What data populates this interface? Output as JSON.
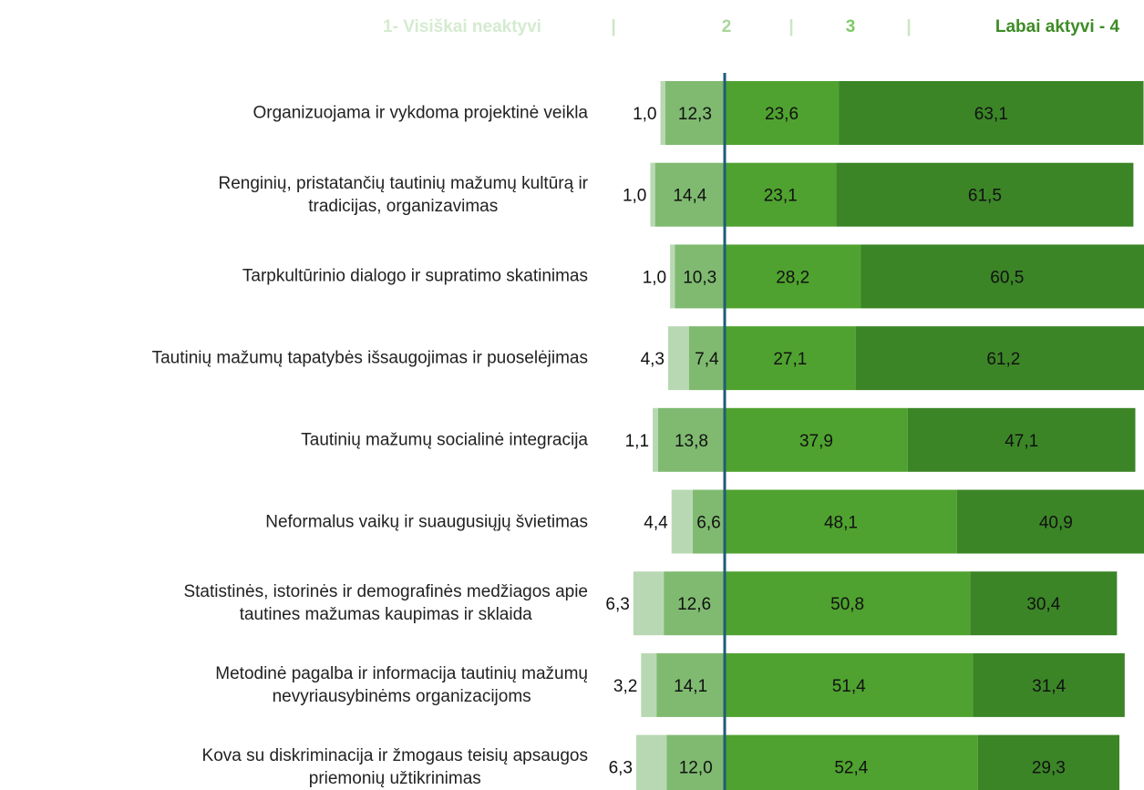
{
  "chart_data": {
    "type": "diverging_bar",
    "legend_separator": "|",
    "categories": [
      "Organizuojama ir vykdoma projektinė veikla",
      "Renginių, pristatančių tautinių mažumų kultūrą ir\ntradicijas, organizavimas",
      "Tarpkultūrinio dialogo ir supratimo skatinimas",
      "Tautinių mažumų tapatybės išsaugojimas ir puoselėjimas",
      "Tautinių mažumų socialinė integracija",
      "Neformalus vaikų ir suaugusiųjų švietimas",
      "Statistinės, istorinės ir demografinės medžiagos apie\ntautines mažumas kaupimas ir sklaida",
      "Metodinė pagalba ir informacija tautinių mažumų\nnevyriausybinėms organizacijoms",
      "Kova su diskriminacija ir žmogaus teisių apsaugos\npriemonių užtikrinimas"
    ],
    "series": [
      {
        "name": "1- Visiškai neaktyvi",
        "color": "#b8d8b3",
        "legend_color": "#d4ebcf",
        "values": [
          1.0,
          1.0,
          1.0,
          4.3,
          1.1,
          4.4,
          6.3,
          3.2,
          6.3
        ],
        "value_labels": [
          "1,0",
          "1,0",
          "1,0",
          "4,3",
          "1,1",
          "4,4",
          "6,3",
          "3,2",
          "6,3"
        ]
      },
      {
        "name": "2",
        "color": "#7fba70",
        "legend_color": "#a9d69c",
        "values": [
          12.3,
          14.4,
          10.3,
          7.4,
          13.8,
          6.6,
          12.6,
          14.1,
          12.0
        ],
        "value_labels": [
          "12,3",
          "14,4",
          "10,3",
          "7,4",
          "13,8",
          "6,6",
          "12,6",
          "14,1",
          "12,0"
        ]
      },
      {
        "name": "3",
        "color": "#4fa22f",
        "legend_color": "#7fc96a",
        "values": [
          23.6,
          23.1,
          28.2,
          27.1,
          37.9,
          48.1,
          50.8,
          51.4,
          52.4
        ],
        "value_labels": [
          "23,6",
          "23,1",
          "28,2",
          "27,1",
          "37,9",
          "48,1",
          "50,8",
          "51,4",
          "52,4"
        ]
      },
      {
        "name": "Labai aktyvi - 4",
        "color": "#3b8527",
        "legend_color": "#3d8b26",
        "values": [
          63.1,
          61.5,
          60.5,
          61.2,
          47.1,
          40.9,
          30.4,
          31.4,
          29.3
        ],
        "value_labels": [
          "63,1",
          "61,5",
          "60,5",
          "61,2",
          "47,1",
          "40,9",
          "30,4",
          "31,4",
          "29,3"
        ]
      }
    ]
  }
}
